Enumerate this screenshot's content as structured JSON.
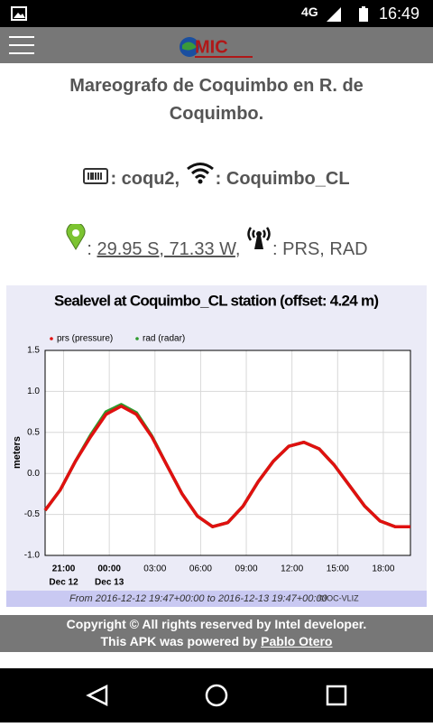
{
  "status_bar": {
    "network": "4G",
    "time": "16:49"
  },
  "header": {
    "logo": "MIC"
  },
  "station": {
    "title": "Mareografo de Coquimbo en R. de Coquimbo.",
    "code": ": coqu2,",
    "name": ": Coquimbo_CL",
    "location_prefix": ": ",
    "location": "29.95 S, 71.33 W",
    "location_suffix": ",",
    "sensors": ": PRS, RAD"
  },
  "chart_data": {
    "type": "line",
    "title": "Sealevel at Coquimbo_CL station (offset: 4.24 m)",
    "y_label": "meters",
    "x": [
      "2016-12-12 19:47",
      "2016-12-12 20:47",
      "2016-12-12 21:47",
      "2016-12-12 22:47",
      "2016-12-12 23:47",
      "2016-12-13 00:47",
      "2016-12-13 01:47",
      "2016-12-13 02:47",
      "2016-12-13 03:47",
      "2016-12-13 04:47",
      "2016-12-13 05:47",
      "2016-12-13 06:47",
      "2016-12-13 07:47",
      "2016-12-13 08:47",
      "2016-12-13 09:47",
      "2016-12-13 10:47",
      "2016-12-13 11:47",
      "2016-12-13 12:47",
      "2016-12-13 13:47",
      "2016-12-13 14:47",
      "2016-12-13 15:47",
      "2016-12-13 16:47",
      "2016-12-13 17:47",
      "2016-12-13 18:47",
      "2016-12-13 19:47"
    ],
    "series": [
      {
        "name": "rad (radar)",
        "color": "#2e9b2e",
        "values": [
          -0.45,
          -0.2,
          0.15,
          0.47,
          0.75,
          0.84,
          0.74,
          0.46,
          0.1,
          -0.25,
          -0.52,
          -0.65,
          -0.6,
          -0.4,
          -0.1,
          0.15,
          0.33,
          0.38,
          0.3,
          0.1,
          -0.15,
          -0.4,
          -0.58,
          -0.65,
          -0.65
        ]
      },
      {
        "name": "prs (pressure)",
        "color": "#e01010",
        "values": [
          -0.45,
          -0.2,
          0.15,
          0.45,
          0.72,
          0.82,
          0.72,
          0.45,
          0.1,
          -0.25,
          -0.52,
          -0.65,
          -0.6,
          -0.4,
          -0.1,
          0.15,
          0.33,
          0.38,
          0.3,
          0.1,
          -0.15,
          -0.4,
          -0.58,
          -0.65,
          -0.65
        ]
      }
    ],
    "legend_order": [
      1,
      0
    ],
    "xlim": [
      "2016-12-12 19:47",
      "2016-12-13 19:47"
    ],
    "xticks": [
      {
        "value": "2016-12-12 21:00",
        "label": "21:00"
      },
      {
        "value": "2016-12-13 00:00",
        "label": "00:00"
      },
      {
        "value": "2016-12-13 03:00",
        "label": "03:00"
      },
      {
        "value": "2016-12-13 06:00",
        "label": "06:00"
      },
      {
        "value": "2016-12-13 09:00",
        "label": "09:00"
      },
      {
        "value": "2016-12-13 12:00",
        "label": "12:00"
      },
      {
        "value": "2016-12-13 15:00",
        "label": "15:00"
      },
      {
        "value": "2016-12-13 18:00",
        "label": "18:00"
      }
    ],
    "x_day_labels": [
      {
        "value": "2016-12-12 21:00",
        "label": "Dec 12"
      },
      {
        "value": "2016-12-13 00:00",
        "label": "Dec 13"
      }
    ],
    "ylim": [
      -1.0,
      1.5
    ],
    "yticks": [
      {
        "value": -1.0,
        "label": "-1.0"
      },
      -0.5,
      {
        "value": 0,
        "label": "0.0"
      },
      0.5,
      {
        "value": 1.0,
        "label": "1.0"
      },
      1.5
    ],
    "grid": true,
    "range_from": "From",
    "range_start": "2016-12-12 19:47+00:00",
    "range_to": "to",
    "range_end": "2016-12-13 19:47+00:00",
    "credit": "©IOC-VLIZ"
  },
  "footer": {
    "copyright": "Copyright © All rights reserved by Intel developer.",
    "powered": "This APK was powered by",
    "author": "Pablo Otero"
  }
}
